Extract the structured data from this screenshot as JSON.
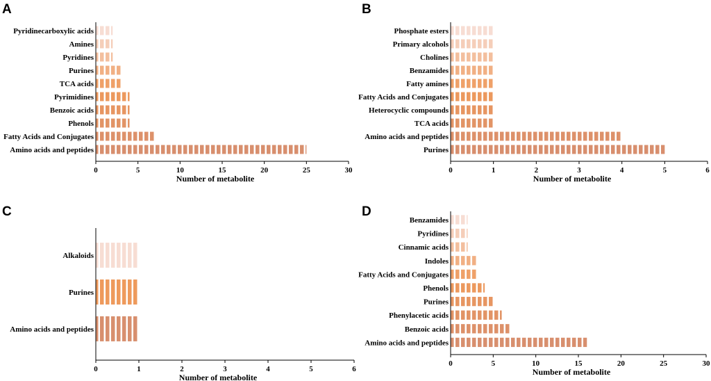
{
  "colors": {
    "top": "#F7DDD3",
    "mid": "#EE9A5C",
    "bottom": "#D88F6E",
    "stripe": "#ffffff"
  },
  "chart_data": [
    {
      "panel": "A",
      "type": "bar",
      "orientation": "horizontal",
      "categories": [
        "Pyridinecarboxylic acids",
        "Amines",
        "Pyridines",
        "Purines",
        "TCA acids",
        "Pyrimidines",
        "Benzoic acids",
        "Phenols",
        "Fatty Acids and Conjugates",
        "Amino acids and peptides"
      ],
      "values": [
        2,
        2,
        2,
        3,
        3,
        4,
        4,
        4,
        7,
        25
      ],
      "xlabel": "Number of metabolite",
      "xlim": [
        0,
        30
      ],
      "xticks": [
        0,
        5,
        10,
        15,
        20,
        25,
        30
      ]
    },
    {
      "panel": "B",
      "type": "bar",
      "orientation": "horizontal",
      "categories": [
        "Phosphate esters",
        "Primary alcohols",
        "Cholines",
        "Benzamides",
        "Fatty amines",
        "Fatty Acids and Conjugates",
        "Heterocyclic compounds",
        "TCA acids",
        "Amino acids and peptides",
        "Purines"
      ],
      "values": [
        1,
        1,
        1,
        1,
        1,
        1,
        1,
        1,
        4,
        5
      ],
      "xlabel": "Number of metabolite",
      "xlim": [
        0,
        6
      ],
      "xticks": [
        0,
        1,
        2,
        3,
        4,
        5,
        6
      ]
    },
    {
      "panel": "C",
      "type": "bar",
      "orientation": "horizontal",
      "categories": [
        "Alkaloids",
        "Purines",
        "Amino acids and peptides"
      ],
      "values": [
        1,
        1,
        1
      ],
      "xlabel": "Number of metabolite",
      "xlim": [
        0,
        6
      ],
      "xticks": [
        0,
        1,
        2,
        3,
        4,
        5,
        6
      ]
    },
    {
      "panel": "D",
      "type": "bar",
      "orientation": "horizontal",
      "categories": [
        "Benzamides",
        "Pyridines",
        "Cinnamic acids",
        "Indoles",
        "Fatty Acids and Conjugates",
        "Phenols",
        "Purines",
        "Phenylacetic acids",
        "Benzoic acids",
        "Amino acids and peptides"
      ],
      "values": [
        2,
        2,
        2,
        3,
        3,
        4,
        5,
        6,
        7,
        16
      ],
      "xlabel": "Number of metabolite",
      "xlim": [
        0,
        30
      ],
      "xticks": [
        0,
        5,
        10,
        15,
        20,
        25,
        30
      ]
    }
  ]
}
